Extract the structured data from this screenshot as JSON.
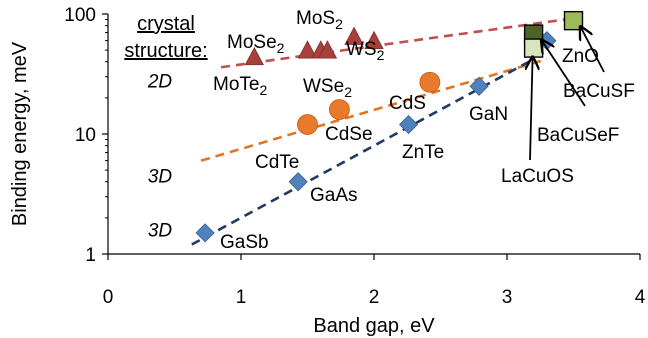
{
  "chart_data": {
    "type": "scatter",
    "xlabel": "Band gap, eV",
    "ylabel": "Binding energy, meV",
    "xlim": [
      0,
      4
    ],
    "ylim": [
      1,
      100
    ],
    "yscale": "log",
    "x_ticks": [
      0,
      1,
      2,
      3,
      4
    ],
    "y_ticks": [
      1,
      10,
      100
    ],
    "grid": false,
    "legend": {
      "title_line1": "crystal",
      "title_line2": "structure:",
      "placement": "top-left"
    },
    "row_labels": [
      {
        "text": "2D",
        "y": 28
      },
      {
        "text": "3D",
        "y": 4.5
      },
      {
        "text": "3D",
        "y": 1.6
      }
    ],
    "series": [
      {
        "marker": "triangle",
        "color": "#a73f3b",
        "points": [
          {
            "label": "MoTe2",
            "x": 1.1,
            "y": 44
          },
          {
            "label": "WSe2",
            "x": 1.5,
            "y": 50
          },
          {
            "label": "WSe2",
            "x": 1.6,
            "y": 50
          },
          {
            "label": "MoSe2",
            "x": 1.65,
            "y": 50
          },
          {
            "label": "MoS2",
            "x": 1.85,
            "y": 65
          },
          {
            "label": "WS2",
            "x": 2.0,
            "y": 60
          }
        ],
        "trend": {
          "color": "#c0504d",
          "x": [
            0.85,
            3.5
          ],
          "y": [
            36,
            92
          ]
        }
      },
      {
        "marker": "circle",
        "color": "#e87b2b",
        "points": [
          {
            "label": "CdTe",
            "x": 1.5,
            "y": 12
          },
          {
            "label": "CdSe",
            "x": 1.74,
            "y": 16
          },
          {
            "label": "CdS",
            "x": 2.42,
            "y": 27
          }
        ],
        "trend": {
          "color": "#e67322",
          "x": [
            0.7,
            3.3
          ],
          "y": [
            6,
            42
          ]
        }
      },
      {
        "marker": "diamond",
        "color": "#4f81bd",
        "points": [
          {
            "label": "GaSb",
            "x": 0.73,
            "y": 1.5
          },
          {
            "label": "GaAs",
            "x": 1.43,
            "y": 4
          },
          {
            "label": "ZnTe",
            "x": 2.26,
            "y": 12
          },
          {
            "label": "GaN",
            "x": 2.79,
            "y": 25
          },
          {
            "label": "ZnO",
            "x": 3.3,
            "y": 60
          }
        ],
        "trend": {
          "color": "#1f3864",
          "x": [
            0.63,
            3.2
          ],
          "y": [
            1.2,
            42
          ]
        }
      },
      {
        "marker": "square",
        "color": "#77933c",
        "points": [
          {
            "label": "BaCuSF",
            "x": 3.5,
            "y": 88,
            "fill": "#9bbb59"
          },
          {
            "label": "BaCuSeF",
            "x": 3.2,
            "y": 68,
            "fill": "#4f6228"
          },
          {
            "label": "LaCuOS",
            "x": 3.2,
            "y": 52,
            "fill": "#d7e4bd"
          }
        ]
      }
    ]
  }
}
